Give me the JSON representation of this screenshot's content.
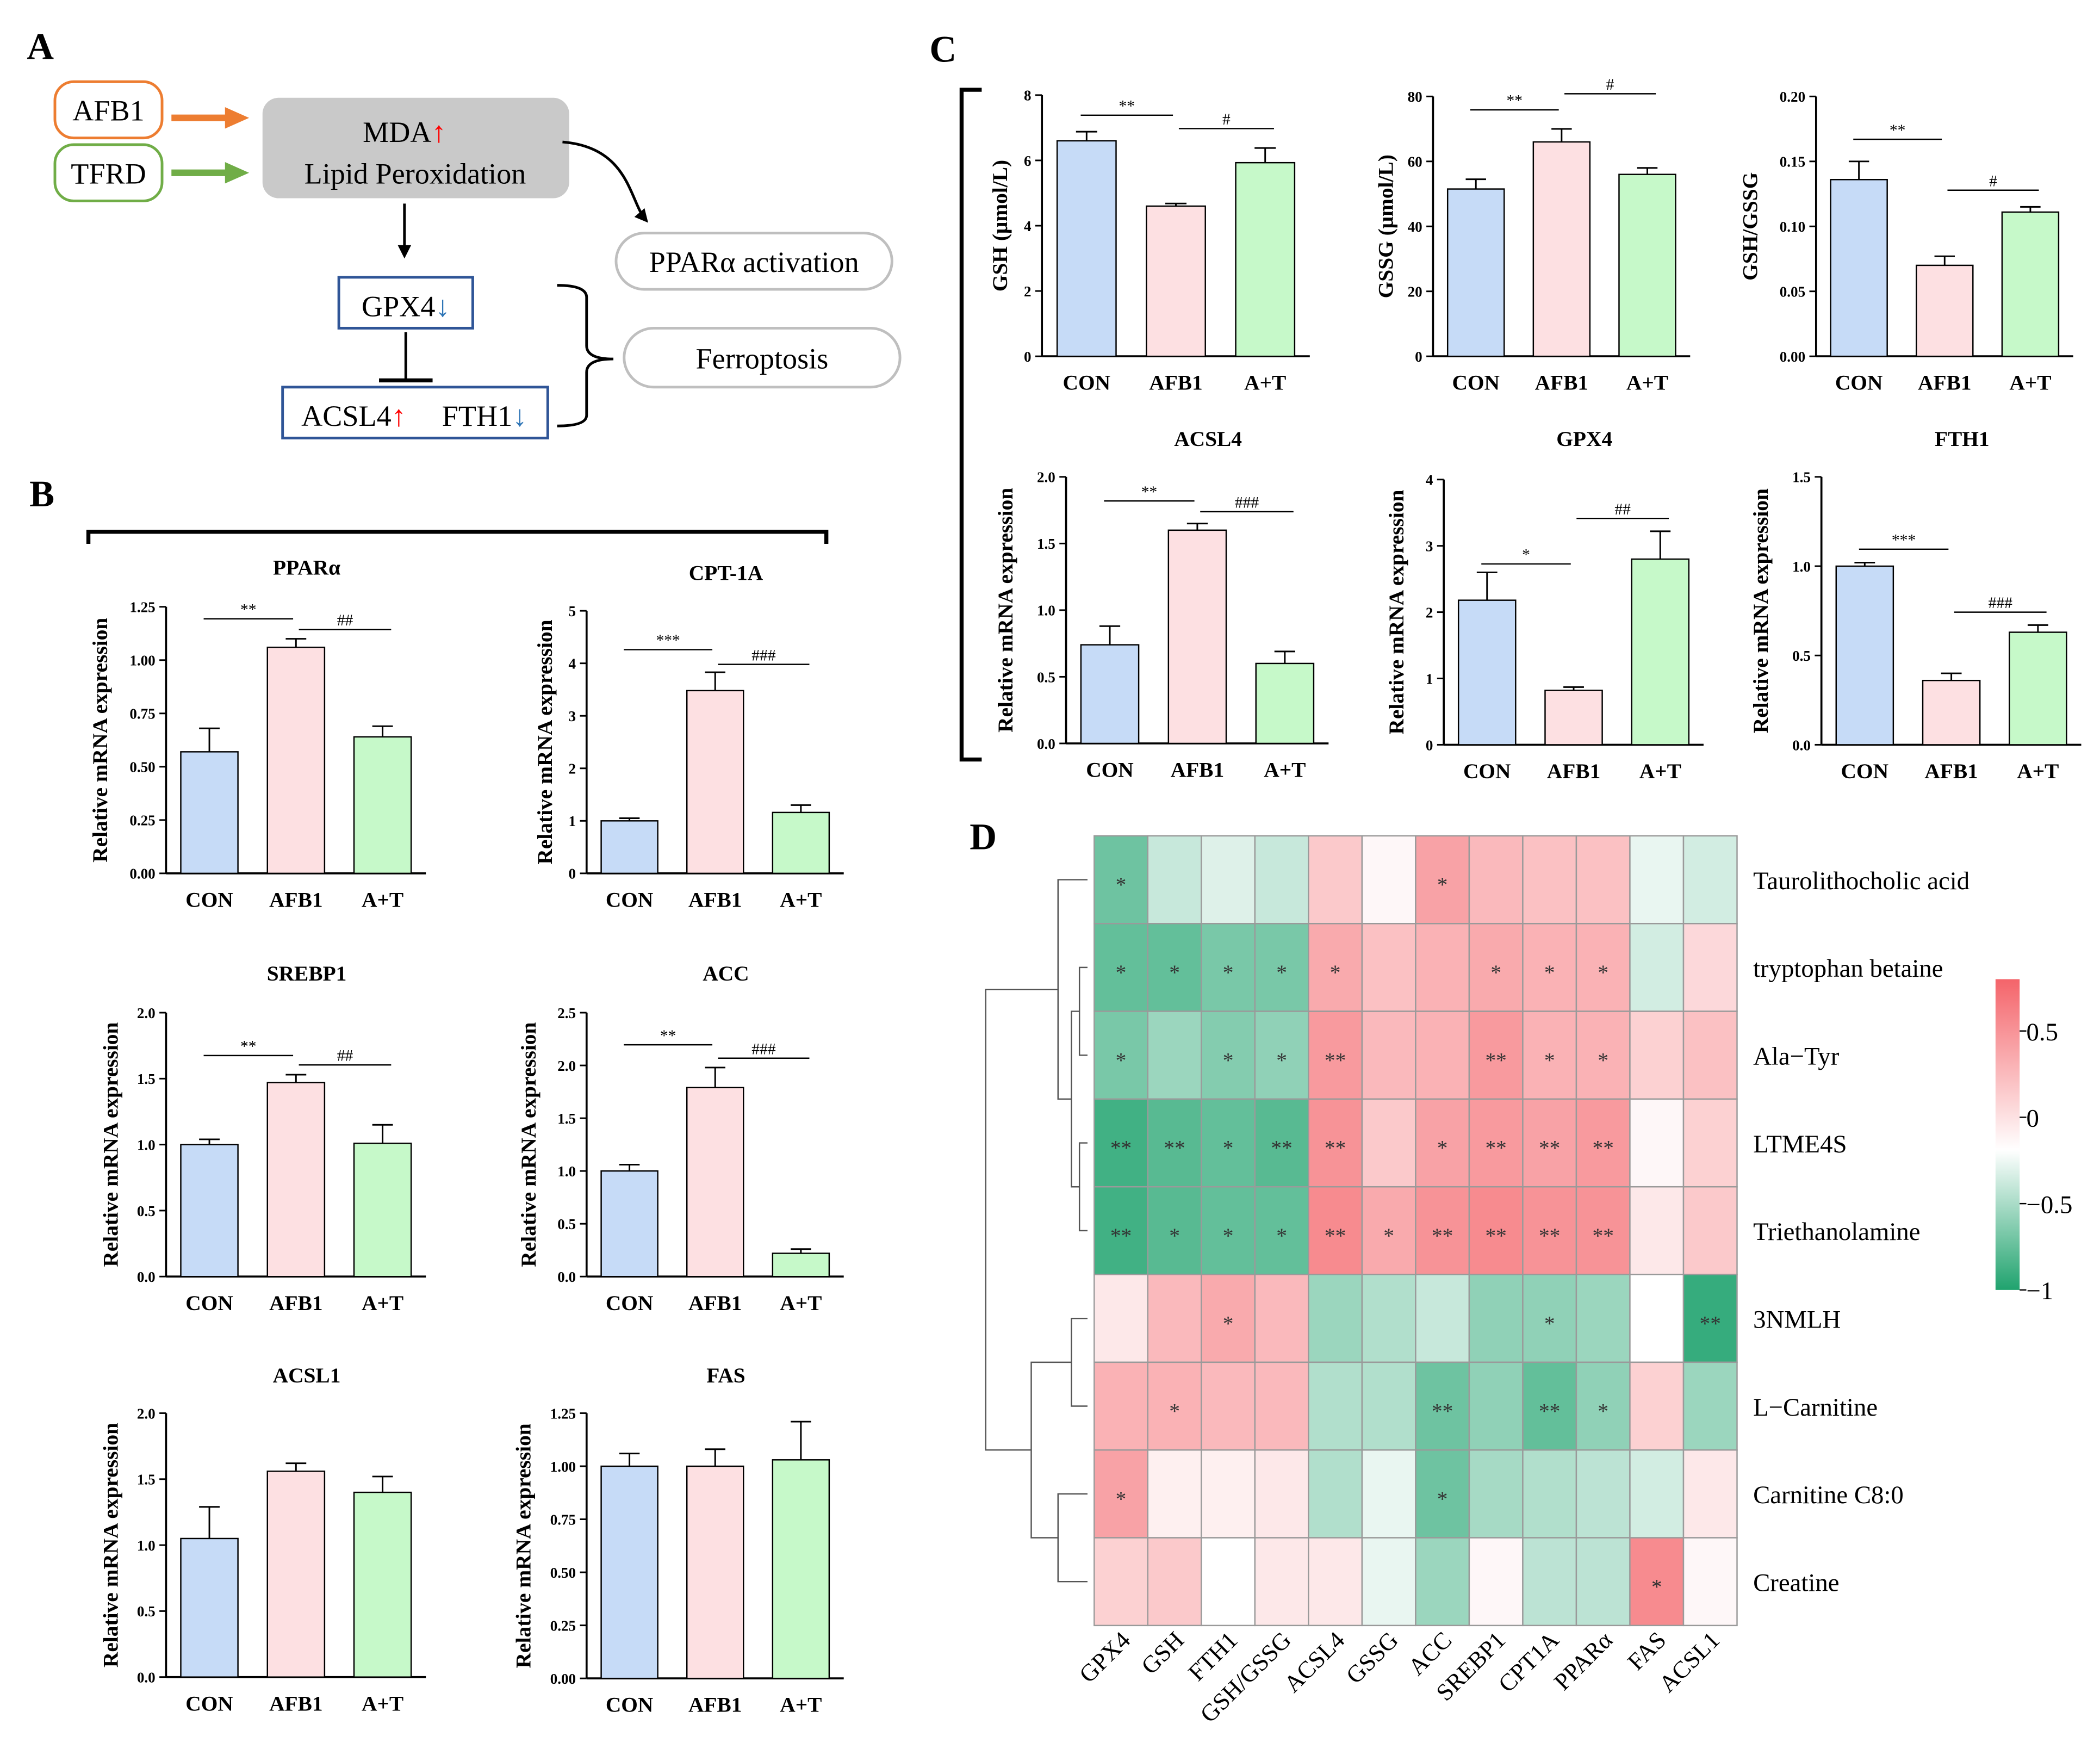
{
  "panels": {
    "a": "A",
    "b": "B",
    "c": "C",
    "d": "D"
  },
  "diagram": {
    "afb1": "AFB1",
    "tfrd": "TFRD",
    "mda": "MDA",
    "lipid": "Lipid Peroxidation",
    "gpx4": "GPX4",
    "acsl4": "ACSL4",
    "fth1": "FTH1",
    "ppara": "PPARα activation",
    "ferroptosis": "Ferroptosis",
    "up_arrow": "↑",
    "down_arrow": "↓",
    "colors": {
      "afb1": "#ed7d31",
      "tfrd": "#70ad47",
      "up": "#ff0000",
      "down": "#2e75b6",
      "box_border": "#2f5597",
      "mda_fill": "#c9c9c9"
    }
  },
  "colors": {
    "con": "#c6dbf7",
    "afb1": "#fde0e2",
    "at": "#c6f9c9",
    "hm_low": "#20a36e",
    "hm_mid": "#ffffff",
    "hm_high": "#f4646a"
  },
  "chart_data": [
    {
      "id": "ppara",
      "panel": "B",
      "type": "bar",
      "title": "PPARα",
      "ylabel": "Relative mRNA expression",
      "categories": [
        "CON",
        "AFB1",
        "A+T"
      ],
      "values": [
        0.57,
        1.06,
        0.64
      ],
      "errors": [
        0.11,
        0.04,
        0.05
      ],
      "ylim": [
        0,
        1.25
      ],
      "yticks": [
        "0.00",
        "0.25",
        "0.50",
        "0.75",
        "1.00",
        "1.25"
      ],
      "sig": [
        {
          "from": 0,
          "to": 1,
          "label": "**"
        },
        {
          "from": 1,
          "to": 2,
          "label": "##"
        }
      ]
    },
    {
      "id": "cpt1a",
      "panel": "B",
      "type": "bar",
      "title": "CPT-1A",
      "ylabel": "Relative mRNA expression",
      "categories": [
        "CON",
        "AFB1",
        "A+T"
      ],
      "values": [
        1.0,
        3.48,
        1.16
      ],
      "errors": [
        0.05,
        0.35,
        0.14
      ],
      "ylim": [
        0,
        5
      ],
      "yticks": [
        "0",
        "1",
        "2",
        "3",
        "4",
        "5"
      ],
      "sig": [
        {
          "from": 0,
          "to": 1,
          "label": "***"
        },
        {
          "from": 1,
          "to": 2,
          "label": "###"
        }
      ]
    },
    {
      "id": "srebp1",
      "panel": "B",
      "type": "bar",
      "title": "SREBP1",
      "ylabel": "Relative mRNA expression",
      "categories": [
        "CON",
        "AFB1",
        "A+T"
      ],
      "values": [
        1.0,
        1.47,
        1.01
      ],
      "errors": [
        0.04,
        0.06,
        0.14
      ],
      "ylim": [
        0,
        2
      ],
      "yticks": [
        "0.0",
        "0.5",
        "1.0",
        "1.5",
        "2.0"
      ],
      "sig": [
        {
          "from": 0,
          "to": 1,
          "label": "**"
        },
        {
          "from": 1,
          "to": 2,
          "label": "##"
        }
      ]
    },
    {
      "id": "acc",
      "panel": "B",
      "type": "bar",
      "title": "ACC",
      "ylabel": "Relative mRNA expression",
      "categories": [
        "CON",
        "AFB1",
        "A+T"
      ],
      "values": [
        1.0,
        1.79,
        0.22
      ],
      "errors": [
        0.06,
        0.19,
        0.04
      ],
      "ylim": [
        0,
        2.5
      ],
      "yticks": [
        "0.0",
        "0.5",
        "1.0",
        "1.5",
        "2.0",
        "2.5"
      ],
      "sig": [
        {
          "from": 0,
          "to": 1,
          "label": "**"
        },
        {
          "from": 1,
          "to": 2,
          "label": "###"
        }
      ]
    },
    {
      "id": "acsl1",
      "panel": "B",
      "type": "bar",
      "title": "ACSL1",
      "ylabel": "Relative mRNA expression",
      "categories": [
        "CON",
        "AFB1",
        "A+T"
      ],
      "values": [
        1.05,
        1.56,
        1.4
      ],
      "errors": [
        0.24,
        0.06,
        0.12
      ],
      "ylim": [
        0,
        2
      ],
      "yticks": [
        "0.0",
        "0.5",
        "1.0",
        "1.5",
        "2.0"
      ],
      "sig": []
    },
    {
      "id": "fas",
      "panel": "B",
      "type": "bar",
      "title": "FAS",
      "ylabel": "Relative mRNA expression",
      "categories": [
        "CON",
        "AFB1",
        "A+T"
      ],
      "values": [
        1.0,
        1.0,
        1.03
      ],
      "errors": [
        0.06,
        0.08,
        0.18
      ],
      "ylim": [
        0,
        1.25
      ],
      "yticks": [
        "0.00",
        "0.25",
        "0.50",
        "0.75",
        "1.00",
        "1.25"
      ],
      "sig": []
    },
    {
      "id": "gsh",
      "panel": "C",
      "type": "bar",
      "title": "",
      "ylabel": "GSH (μmol/L)",
      "categories": [
        "CON",
        "AFB1",
        "A+T"
      ],
      "values": [
        6.6,
        4.6,
        5.93
      ],
      "errors": [
        0.28,
        0.08,
        0.45
      ],
      "ylim": [
        0,
        8
      ],
      "yticks": [
        "0",
        "2",
        "4",
        "6",
        "8"
      ],
      "sig": [
        {
          "from": 0,
          "to": 1,
          "label": "**"
        },
        {
          "from": 1,
          "to": 2,
          "label": "#"
        }
      ]
    },
    {
      "id": "gssg",
      "panel": "C",
      "type": "bar",
      "title": "",
      "ylabel": "GSSG (μmol/L)",
      "categories": [
        "CON",
        "AFB1",
        "A+T"
      ],
      "values": [
        51.5,
        66.0,
        56.0
      ],
      "errors": [
        3.0,
        4.0,
        2.0
      ],
      "ylim": [
        0,
        80
      ],
      "yticks": [
        "0",
        "20",
        "40",
        "60",
        "80"
      ],
      "sig": [
        {
          "from": 0,
          "to": 1,
          "label": "**"
        },
        {
          "from": 1,
          "to": 2,
          "label": "#"
        }
      ]
    },
    {
      "id": "gshgssg",
      "panel": "C",
      "type": "bar",
      "title": "",
      "ylabel": "GSH/GSSG",
      "categories": [
        "CON",
        "AFB1",
        "A+T"
      ],
      "values": [
        0.136,
        0.07,
        0.111
      ],
      "errors": [
        0.014,
        0.007,
        0.004
      ],
      "ylim": [
        0,
        0.2
      ],
      "yticks": [
        "0.00",
        "0.05",
        "0.10",
        "0.15",
        "0.20"
      ],
      "sig": [
        {
          "from": 0,
          "to": 1,
          "label": "**"
        },
        {
          "from": 1,
          "to": 2,
          "label": "#"
        }
      ]
    },
    {
      "id": "acsl4",
      "panel": "C",
      "type": "bar",
      "title": "ACSL4",
      "ylabel": "Relative mRNA expression",
      "categories": [
        "CON",
        "AFB1",
        "A+T"
      ],
      "values": [
        0.74,
        1.6,
        0.6
      ],
      "errors": [
        0.14,
        0.05,
        0.09
      ],
      "ylim": [
        0,
        2
      ],
      "yticks": [
        "0.0",
        "0.5",
        "1.0",
        "1.5",
        "2.0"
      ],
      "sig": [
        {
          "from": 0,
          "to": 1,
          "label": "**"
        },
        {
          "from": 1,
          "to": 2,
          "label": "###"
        }
      ]
    },
    {
      "id": "gpx4",
      "panel": "C",
      "type": "bar",
      "title": "GPX4",
      "ylabel": "Relative mRNA expression",
      "categories": [
        "CON",
        "AFB1",
        "A+T"
      ],
      "values": [
        2.18,
        0.82,
        2.8
      ],
      "errors": [
        0.42,
        0.05,
        0.42
      ],
      "ylim": [
        0,
        4
      ],
      "yticks": [
        "0",
        "1",
        "2",
        "3",
        "4"
      ],
      "sig": [
        {
          "from": 0,
          "to": 1,
          "label": "*"
        },
        {
          "from": 1,
          "to": 2,
          "label": "##"
        }
      ]
    },
    {
      "id": "fth1",
      "panel": "C",
      "type": "bar",
      "title": "FTH1",
      "ylabel": "Relative mRNA expression",
      "categories": [
        "CON",
        "AFB1",
        "A+T"
      ],
      "values": [
        1.0,
        0.36,
        0.63
      ],
      "errors": [
        0.02,
        0.04,
        0.04
      ],
      "ylim": [
        0,
        1.5
      ],
      "yticks": [
        "0.0",
        "0.5",
        "1.0",
        "1.5"
      ],
      "sig": [
        {
          "from": 0,
          "to": 1,
          "label": "***"
        },
        {
          "from": 1,
          "to": 2,
          "label": "###"
        }
      ]
    },
    {
      "id": "heatmap",
      "panel": "D",
      "type": "heatmap",
      "columns": [
        "GPX4",
        "GSH",
        "FTH1",
        "GSH/GSSG",
        "ACSL4",
        "GSSG",
        "ACC",
        "SREBP1",
        "CPT1A",
        "PPARα",
        "FAS",
        "ACSL1"
      ],
      "rows": [
        "Taurolithocholic acid",
        "tryptophan betaine",
        "Ala−Tyr",
        "LTME4S",
        "Triethanolamine",
        "3NMLH",
        "L−Carnitine",
        "Carnitine C8:0",
        "Creatine"
      ],
      "values": [
        [
          -0.65,
          -0.25,
          -0.15,
          -0.25,
          0.35,
          0.05,
          0.6,
          0.45,
          0.4,
          0.4,
          -0.1,
          -0.2
        ],
        [
          -0.7,
          -0.7,
          -0.6,
          -0.6,
          0.55,
          0.4,
          0.5,
          0.55,
          0.5,
          0.5,
          -0.2,
          0.25
        ],
        [
          -0.6,
          -0.45,
          -0.55,
          -0.5,
          0.65,
          0.45,
          0.5,
          0.65,
          0.5,
          0.5,
          0.3,
          0.4
        ],
        [
          -0.85,
          -0.75,
          -0.7,
          -0.75,
          0.7,
          0.35,
          0.6,
          0.65,
          0.6,
          0.65,
          0.05,
          0.3
        ],
        [
          -0.85,
          -0.75,
          -0.7,
          -0.7,
          0.75,
          0.55,
          0.7,
          0.75,
          0.7,
          0.7,
          0.15,
          0.35
        ],
        [
          0.15,
          0.45,
          0.55,
          0.45,
          -0.45,
          -0.35,
          -0.25,
          -0.5,
          -0.5,
          -0.45,
          0.0,
          -0.9
        ],
        [
          0.5,
          0.5,
          0.45,
          0.45,
          -0.35,
          -0.35,
          -0.65,
          -0.5,
          -0.7,
          -0.5,
          0.3,
          -0.45
        ],
        [
          0.6,
          0.1,
          0.1,
          0.15,
          -0.35,
          -0.1,
          -0.65,
          -0.4,
          -0.35,
          -0.3,
          -0.2,
          0.15
        ],
        [
          0.3,
          0.35,
          0.0,
          0.15,
          0.15,
          -0.1,
          -0.45,
          0.05,
          -0.3,
          -0.3,
          0.75,
          0.05
        ]
      ],
      "stars": [
        [
          "*",
          "",
          "",
          "",
          "",
          "",
          "*",
          "",
          "",
          "",
          "",
          ""
        ],
        [
          "*",
          "*",
          "*",
          "*",
          "*",
          "",
          "",
          "*",
          "*",
          "*",
          "",
          ""
        ],
        [
          "*",
          "",
          "*",
          "*",
          "**",
          "",
          "",
          "**",
          "*",
          "*",
          "",
          ""
        ],
        [
          "**",
          "**",
          "*",
          "**",
          "**",
          "",
          "*",
          "**",
          "**",
          "**",
          "",
          ""
        ],
        [
          "**",
          "*",
          "*",
          "*",
          "**",
          "*",
          "**",
          "**",
          "**",
          "**",
          "",
          ""
        ],
        [
          "",
          "",
          "*",
          "",
          "",
          "",
          "",
          "",
          "*",
          "",
          "",
          "**"
        ],
        [
          "",
          "*",
          "",
          "",
          "",
          "",
          "**",
          "",
          "**",
          "*",
          "",
          ""
        ],
        [
          "*",
          "",
          "",
          "",
          "",
          "",
          "*",
          "",
          "",
          "",
          "",
          ""
        ],
        [
          "",
          "",
          "",
          "",
          "",
          "",
          "",
          "",
          "",
          "",
          "*",
          ""
        ]
      ],
      "colorbar": {
        "range": [
          -1,
          0.8
        ],
        "ticks": [
          "0.5",
          "0",
          "−0.5",
          "−1"
        ]
      }
    }
  ]
}
